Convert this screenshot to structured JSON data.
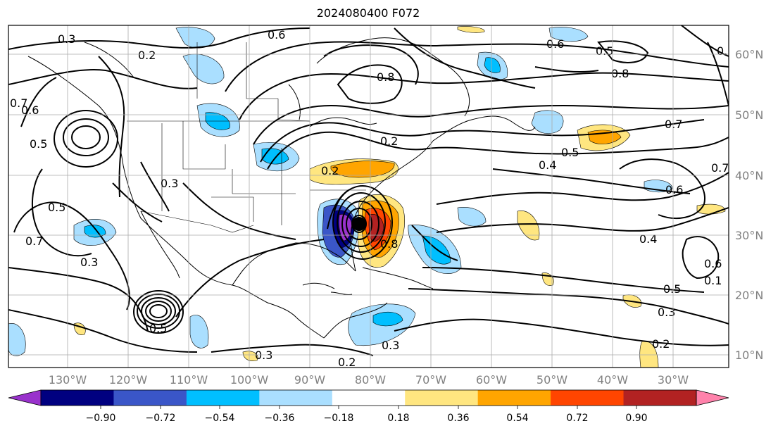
{
  "title": "2024080400 F072",
  "lon_ticks": [
    "130°W",
    "120°W",
    "110°W",
    "100°W",
    "90°W",
    "80°W",
    "70°W",
    "60°W",
    "50°W",
    "40°W",
    "30°W"
  ],
  "lat_ticks": [
    "60°N",
    "50°N",
    "40°N",
    "30°N",
    "20°N",
    "10°N"
  ],
  "colorbar": {
    "ticks": [
      "−0.90",
      "−0.72",
      "−0.54",
      "−0.36",
      "−0.18",
      "0.18",
      "0.36",
      "0.54",
      "0.72",
      "0.90"
    ],
    "colors": [
      "#9932cc",
      "#000080",
      "#3a56c8",
      "#00bfff",
      "#aadfff",
      "#ffffff",
      "#ffe680",
      "#ffa500",
      "#ff4500",
      "#b22222",
      "#ff82ab"
    ]
  },
  "contour_labels": [
    "0.3",
    "0.6",
    "0.2",
    "0.8",
    "0.6",
    "0.5",
    "0.8",
    "0.7",
    "0.6",
    "0.1",
    "0.5",
    "0.3",
    "0.2",
    "0.4",
    "0.5",
    "0.2",
    "0.7",
    "0.7",
    "0.6",
    "0.4",
    "0.6",
    "0.5",
    "0.1",
    "0.5",
    "0.7",
    "0.3",
    "0.8",
    "0.3",
    "0.3",
    "0.5",
    "0.2",
    "0.3",
    "0.2"
  ],
  "storm_center": {
    "lon": -80.5,
    "lat": 31.5
  }
}
